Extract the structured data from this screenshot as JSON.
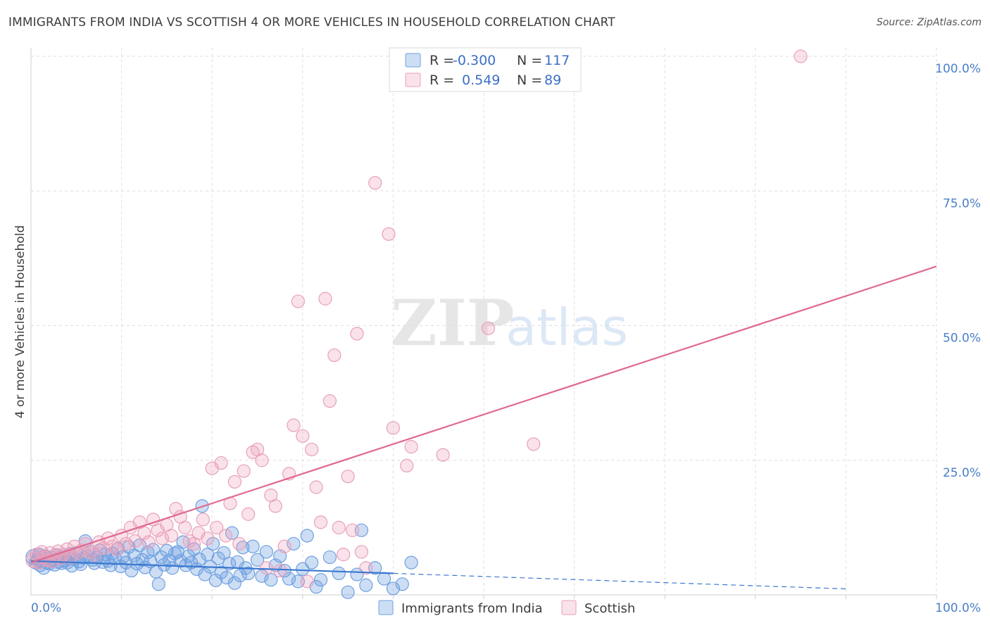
{
  "header": {
    "title": "IMMIGRANTS FROM INDIA VS SCOTTISH 4 OR MORE VEHICLES IN HOUSEHOLD CORRELATION CHART",
    "source": "Source: ZipAtlas.com"
  },
  "watermark": {
    "zip": "ZIP",
    "atlas": "atlas"
  },
  "colors": {
    "blue": "#6fa0e0",
    "blue_fill": "rgba(111,160,224,0.35)",
    "blue_line": "#3a78d0",
    "pink": "#e8a0b8",
    "pink_fill": "rgba(240,160,185,0.30)",
    "pink_line": "#e06890",
    "grid": "#dedede",
    "tick": "#4a7ec7"
  },
  "chart_data": {
    "type": "scatter",
    "title": "IMMIGRANTS FROM INDIA VS SCOTTISH 4 OR MORE VEHICLES IN HOUSEHOLD CORRELATION CHART",
    "xlabel": "",
    "ylabel": "4 or more Vehicles in Household",
    "xlim": [
      0,
      100
    ],
    "ylim": [
      0,
      100
    ],
    "x_tick_labels": [
      "0.0%",
      "100.0%"
    ],
    "y_ticks": [
      25,
      50,
      75,
      100
    ],
    "y_tick_labels": [
      "25.0%",
      "50.0%",
      "75.0%",
      "100.0%"
    ],
    "legend": {
      "r_label": "R =",
      "n_label": "N =",
      "entries": [
        {
          "name": "Immigrants from India",
          "r": "-0.300",
          "n": "117"
        },
        {
          "name": "Scottish",
          "r": "0.549",
          "n": "89"
        }
      ]
    },
    "series": [
      {
        "name": "Immigrants from India",
        "trend": {
          "x0": 0,
          "y0": 6.3,
          "x1": 40,
          "y1": 4.0,
          "dash_to": 90
        },
        "points": [
          [
            0.3,
            7.0
          ],
          [
            0.5,
            6.0
          ],
          [
            0.7,
            6.5
          ],
          [
            0.9,
            7.5
          ],
          [
            1.0,
            5.5
          ],
          [
            1.2,
            6.2
          ],
          [
            1.4,
            5.0
          ],
          [
            1.5,
            7.2
          ],
          [
            1.7,
            6.0
          ],
          [
            1.9,
            6.8
          ],
          [
            2.0,
            5.8
          ],
          [
            2.2,
            7.0
          ],
          [
            2.4,
            6.3
          ],
          [
            2.6,
            5.6
          ],
          [
            2.8,
            7.4
          ],
          [
            3.0,
            6.1
          ],
          [
            3.2,
            6.9
          ],
          [
            3.4,
            5.9
          ],
          [
            3.6,
            7.1
          ],
          [
            3.8,
            6.4
          ],
          [
            4.0,
            6.0
          ],
          [
            4.3,
            7.6
          ],
          [
            4.5,
            5.4
          ],
          [
            4.8,
            6.6
          ],
          [
            5.0,
            7.8
          ],
          [
            5.3,
            6.2
          ],
          [
            5.5,
            5.7
          ],
          [
            5.8,
            6.9
          ],
          [
            6.0,
            10.0
          ],
          [
            6.2,
            7.2
          ],
          [
            6.5,
            8.0
          ],
          [
            6.8,
            6.5
          ],
          [
            7.0,
            5.9
          ],
          [
            7.3,
            7.0
          ],
          [
            7.6,
            8.3
          ],
          [
            7.9,
            6.1
          ],
          [
            8.2,
            7.5
          ],
          [
            8.5,
            6.3
          ],
          [
            8.8,
            5.5
          ],
          [
            9.0,
            7.7
          ],
          [
            9.3,
            6.8
          ],
          [
            9.6,
            8.6
          ],
          [
            9.9,
            5.3
          ],
          [
            10.2,
            7.1
          ],
          [
            10.5,
            6.0
          ],
          [
            10.8,
            8.9
          ],
          [
            11.1,
            4.5
          ],
          [
            11.4,
            7.3
          ],
          [
            11.7,
            5.8
          ],
          [
            12.0,
            9.2
          ],
          [
            12.3,
            6.5
          ],
          [
            12.6,
            5.1
          ],
          [
            12.9,
            7.9
          ],
          [
            13.2,
            6.2
          ],
          [
            13.5,
            8.4
          ],
          [
            13.8,
            4.3
          ],
          [
            14.1,
            2.0
          ],
          [
            14.4,
            7.0
          ],
          [
            14.7,
            5.6
          ],
          [
            15.0,
            8.2
          ],
          [
            15.3,
            6.4
          ],
          [
            15.6,
            5.0
          ],
          [
            15.9,
            7.7
          ],
          [
            16.2,
            8.0
          ],
          [
            16.5,
            6.3
          ],
          [
            16.8,
            9.8
          ],
          [
            17.1,
            5.5
          ],
          [
            17.4,
            7.2
          ],
          [
            17.7,
            6.0
          ],
          [
            18.0,
            8.5
          ],
          [
            18.3,
            4.8
          ],
          [
            18.6,
            6.6
          ],
          [
            18.9,
            16.5
          ],
          [
            19.2,
            3.8
          ],
          [
            19.5,
            7.5
          ],
          [
            19.8,
            5.2
          ],
          [
            20.1,
            9.5
          ],
          [
            20.4,
            2.7
          ],
          [
            20.7,
            6.8
          ],
          [
            21.0,
            4.2
          ],
          [
            21.3,
            7.8
          ],
          [
            21.6,
            3.2
          ],
          [
            21.9,
            5.8
          ],
          [
            22.2,
            11.5
          ],
          [
            22.5,
            2.2
          ],
          [
            22.8,
            6.1
          ],
          [
            23.1,
            3.6
          ],
          [
            23.4,
            8.8
          ],
          [
            23.7,
            5.0
          ],
          [
            24.0,
            4.0
          ],
          [
            24.5,
            9.0
          ],
          [
            25.0,
            6.5
          ],
          [
            25.5,
            3.5
          ],
          [
            26.0,
            8.0
          ],
          [
            26.5,
            2.8
          ],
          [
            27.0,
            5.5
          ],
          [
            27.5,
            7.2
          ],
          [
            28.0,
            4.5
          ],
          [
            28.5,
            3.0
          ],
          [
            29.0,
            9.5
          ],
          [
            29.5,
            2.5
          ],
          [
            30.0,
            4.8
          ],
          [
            30.5,
            11.0
          ],
          [
            31.0,
            6.0
          ],
          [
            31.5,
            1.5
          ],
          [
            32.0,
            2.8
          ],
          [
            33.0,
            7.0
          ],
          [
            34.0,
            4.0
          ],
          [
            35.0,
            0.5
          ],
          [
            36.0,
            3.8
          ],
          [
            37.0,
            1.8
          ],
          [
            38.0,
            5.0
          ],
          [
            39.0,
            3.0
          ],
          [
            40.0,
            1.2
          ],
          [
            41.0,
            2.0
          ],
          [
            42.0,
            6.0
          ],
          [
            36.5,
            12.0
          ]
        ]
      },
      {
        "name": "Scottish",
        "trend": {
          "x0": 0,
          "y0": 6.0,
          "x1": 100,
          "y1": 61.0
        },
        "points": [
          [
            0.3,
            6.5
          ],
          [
            0.6,
            7.5
          ],
          [
            0.9,
            6.0
          ],
          [
            1.2,
            8.0
          ],
          [
            1.5,
            7.0
          ],
          [
            1.8,
            6.5
          ],
          [
            2.1,
            7.8
          ],
          [
            2.4,
            6.2
          ],
          [
            2.7,
            7.3
          ],
          [
            3.0,
            8.1
          ],
          [
            3.3,
            6.8
          ],
          [
            3.6,
            7.5
          ],
          [
            4.0,
            8.5
          ],
          [
            4.4,
            7.0
          ],
          [
            4.8,
            9.0
          ],
          [
            5.2,
            7.8
          ],
          [
            5.6,
            8.3
          ],
          [
            6.0,
            9.5
          ],
          [
            6.5,
            8.0
          ],
          [
            7.0,
            7.5
          ],
          [
            7.5,
            9.8
          ],
          [
            8.0,
            8.7
          ],
          [
            8.5,
            10.5
          ],
          [
            9.0,
            9.0
          ],
          [
            9.5,
            8.5
          ],
          [
            10.0,
            11.0
          ],
          [
            10.5,
            9.5
          ],
          [
            11.0,
            12.5
          ],
          [
            11.5,
            10.0
          ],
          [
            12.0,
            13.5
          ],
          [
            12.5,
            11.5
          ],
          [
            13.0,
            9.8
          ],
          [
            13.5,
            14.0
          ],
          [
            14.0,
            12.0
          ],
          [
            14.5,
            10.5
          ],
          [
            15.0,
            13.0
          ],
          [
            15.5,
            11.0
          ],
          [
            16.0,
            16.0
          ],
          [
            16.5,
            14.5
          ],
          [
            17.0,
            12.5
          ],
          [
            17.5,
            10.0
          ],
          [
            18.0,
            9.5
          ],
          [
            18.5,
            11.5
          ],
          [
            19.0,
            14.0
          ],
          [
            19.5,
            10.5
          ],
          [
            20.0,
            23.5
          ],
          [
            20.5,
            12.5
          ],
          [
            21.0,
            24.5
          ],
          [
            21.5,
            11.0
          ],
          [
            22.0,
            17.0
          ],
          [
            22.5,
            21.0
          ],
          [
            23.0,
            9.5
          ],
          [
            23.5,
            23.0
          ],
          [
            24.0,
            15.0
          ],
          [
            24.5,
            26.5
          ],
          [
            25.0,
            27.0
          ],
          [
            25.5,
            25.0
          ],
          [
            26.0,
            5.0
          ],
          [
            26.5,
            18.5
          ],
          [
            27.0,
            16.5
          ],
          [
            27.5,
            4.5
          ],
          [
            28.0,
            9.0
          ],
          [
            28.5,
            22.5
          ],
          [
            29.0,
            31.5
          ],
          [
            29.5,
            54.5
          ],
          [
            30.0,
            29.5
          ],
          [
            30.5,
            2.5
          ],
          [
            31.0,
            27.0
          ],
          [
            31.5,
            20.0
          ],
          [
            32.0,
            13.5
          ],
          [
            32.5,
            55.0
          ],
          [
            33.0,
            36.0
          ],
          [
            33.5,
            44.5
          ],
          [
            34.0,
            12.5
          ],
          [
            34.5,
            7.5
          ],
          [
            35.0,
            22.0
          ],
          [
            35.5,
            12.0
          ],
          [
            36.0,
            48.5
          ],
          [
            36.5,
            8.0
          ],
          [
            37.0,
            5.0
          ],
          [
            38.0,
            76.5
          ],
          [
            39.5,
            67.0
          ],
          [
            40.0,
            31.0
          ],
          [
            41.5,
            24.0
          ],
          [
            42.0,
            27.5
          ],
          [
            45.5,
            26.0
          ],
          [
            50.5,
            49.5
          ],
          [
            55.5,
            28.0
          ],
          [
            85.0,
            100.0
          ]
        ]
      }
    ]
  },
  "bottom_legend": [
    {
      "label": "Immigrants from India"
    },
    {
      "label": "Scottish"
    }
  ]
}
